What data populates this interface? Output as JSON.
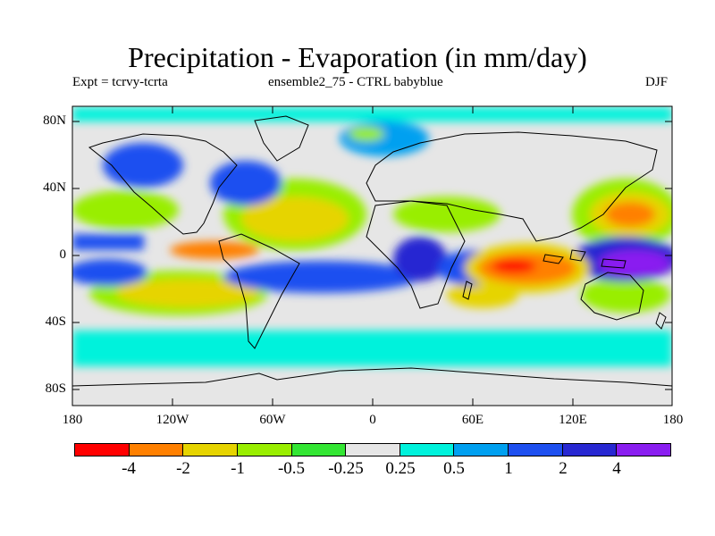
{
  "title": "Precipitation - Evaporation (in mm/day)",
  "subtitle_left": "Expt = tcrvy-tcrta",
  "subtitle_center": "ensemble2_75 - CTRL babyblue",
  "subtitle_right": "DJF",
  "lat_labels": [
    "80N",
    "40N",
    "0",
    "40S",
    "80S"
  ],
  "lon_labels": [
    "180",
    "120W",
    "60W",
    "0",
    "60E",
    "120E",
    "180"
  ],
  "colorbar": {
    "colors": [
      "#ff0000",
      "#ff8000",
      "#e6d400",
      "#99ee00",
      "#33e633",
      "#e6e6e6",
      "#00f2dc",
      "#00a0f0",
      "#1e50f0",
      "#2828d2",
      "#8a1ef0"
    ],
    "labels": [
      "-4",
      "-2",
      "-1",
      "-0.5",
      "-0.25",
      "0.25",
      "0.5",
      "1",
      "2",
      "4"
    ]
  }
}
